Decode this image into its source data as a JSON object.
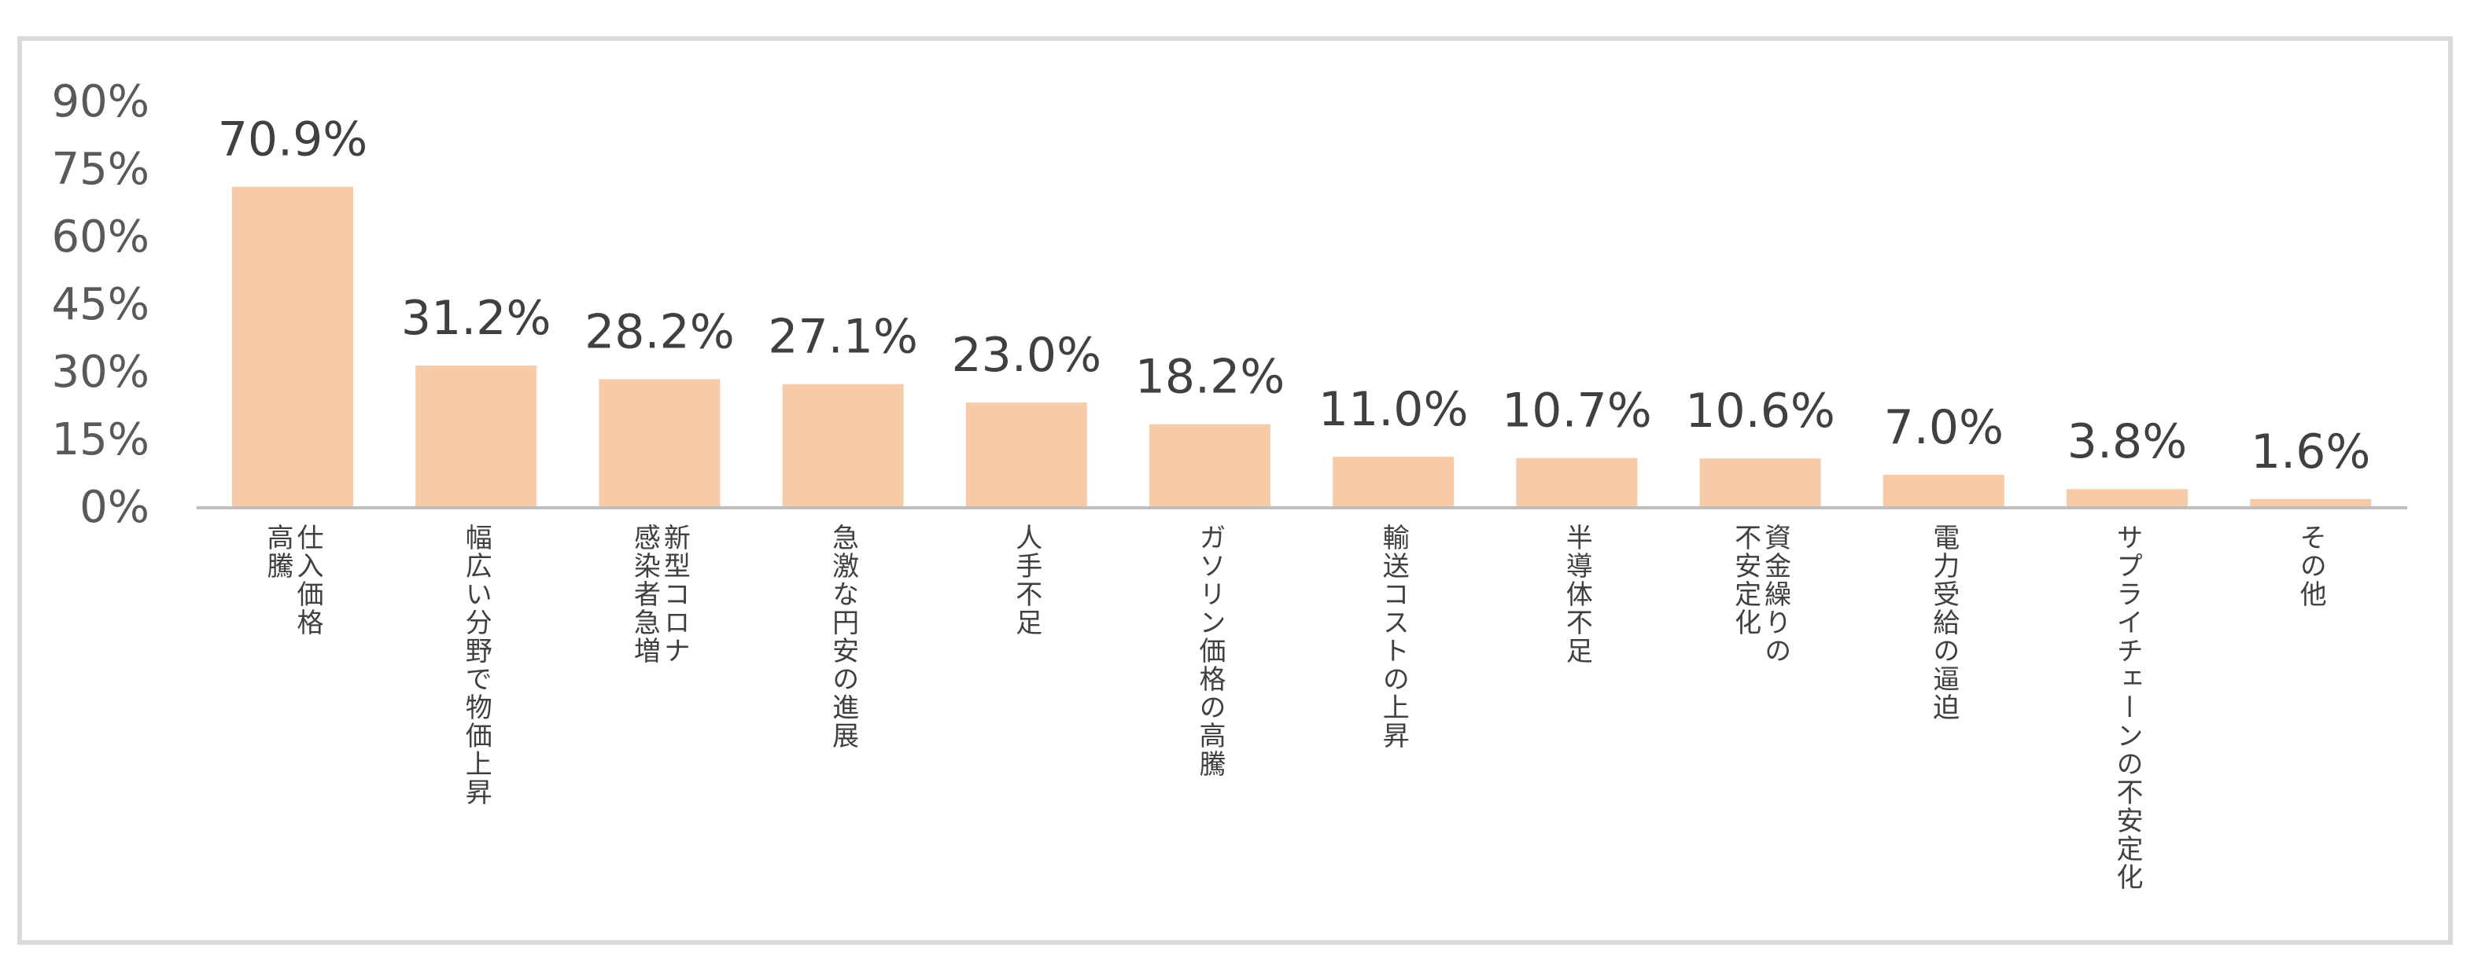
{
  "chart_data": {
    "type": "bar",
    "ylim": [
      0,
      90
    ],
    "yticks": [
      "90%",
      "75%",
      "60%",
      "45%",
      "30%",
      "15%",
      "0%"
    ],
    "grid": false,
    "colors": {
      "bar": "#F8CBA8",
      "axis": "#bfbfbf",
      "frame": "#d9d9d9"
    },
    "categories": [
      [
        "仕入価格",
        "高騰"
      ],
      [
        "幅広い分野で物価上昇"
      ],
      [
        "新型コロナ",
        "感染者急増"
      ],
      [
        "急激な円安の進展"
      ],
      [
        "人手不足"
      ],
      [
        "ガソリン価格の高騰"
      ],
      [
        "輸送コストの上昇"
      ],
      [
        "半導体不足"
      ],
      [
        "資金繰りの",
        "不安定化"
      ],
      [
        "電力受給の逼迫"
      ],
      [
        "サプライチェーンの不安定化"
      ],
      [
        "その他"
      ]
    ],
    "values": [
      70.9,
      31.2,
      28.2,
      27.1,
      23.0,
      18.2,
      11.0,
      10.7,
      10.6,
      7.0,
      3.8,
      1.6
    ],
    "value_labels": [
      "70.9%",
      "31.2%",
      "28.2%",
      "27.1%",
      "23.0%",
      "18.2%",
      "11.0%",
      "10.7%",
      "10.6%",
      "7.0%",
      "3.8%",
      "1.6%"
    ]
  }
}
